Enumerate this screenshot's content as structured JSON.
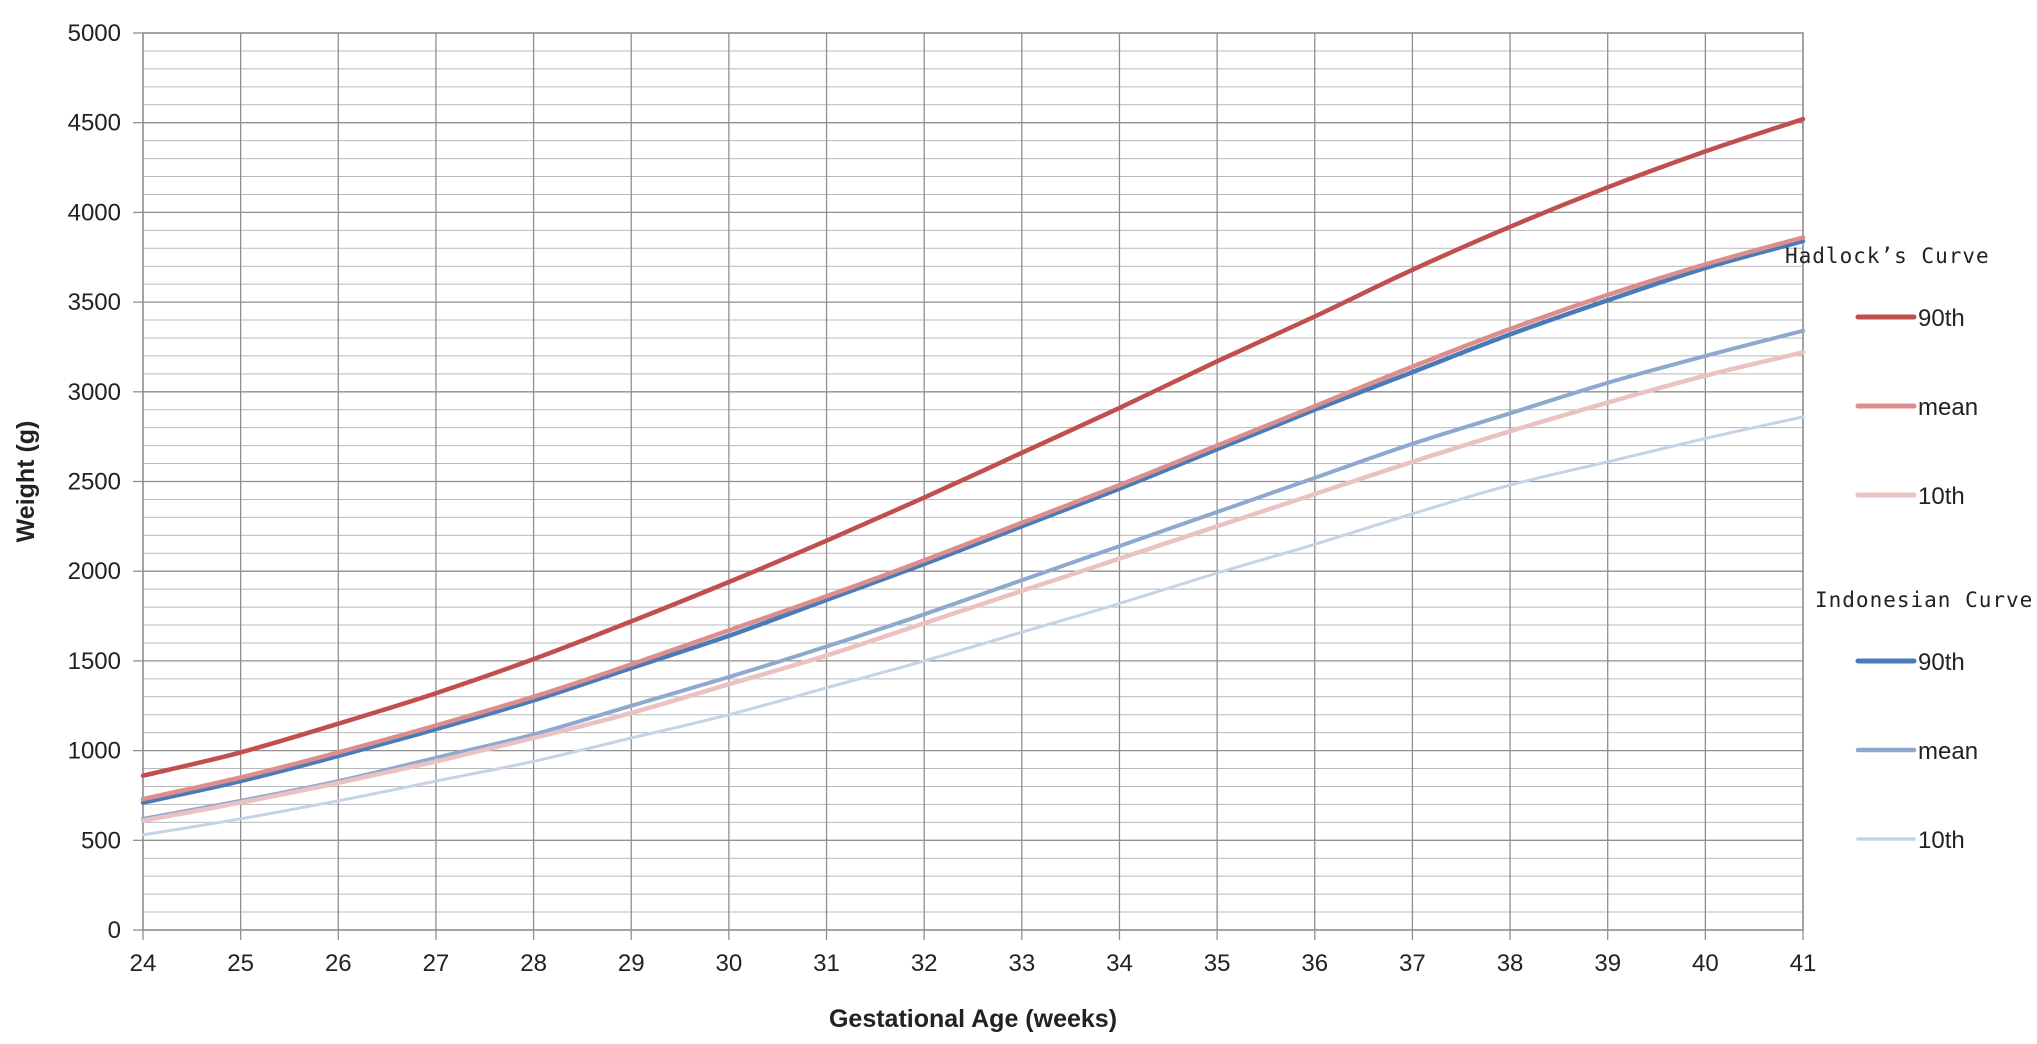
{
  "chart_data": {
    "type": "line",
    "title": "",
    "xlabel": "Gestational Age (weeks)",
    "ylabel": "Weight (g)",
    "xlim": [
      24,
      41
    ],
    "ylim": [
      0,
      5000
    ],
    "x_ticks": [
      24,
      25,
      26,
      27,
      28,
      29,
      30,
      31,
      32,
      33,
      34,
      35,
      36,
      37,
      38,
      39,
      40,
      41
    ],
    "y_ticks": [
      0,
      500,
      1000,
      1500,
      2000,
      2500,
      3000,
      3500,
      4000,
      4500,
      5000
    ],
    "y_minor_step": 100,
    "grid": true,
    "legend_position": "right",
    "x": [
      24,
      25,
      26,
      27,
      28,
      29,
      30,
      31,
      32,
      33,
      34,
      35,
      36,
      37,
      38,
      39,
      40,
      41
    ],
    "legend_groups": [
      {
        "title": "Hadlock’s Curve",
        "series": [
          {
            "name": "90th",
            "color": "#c0504d",
            "width": 4.5,
            "values": [
              860,
              990,
              1150,
              1320,
              1510,
              1720,
              1940,
              2170,
              2410,
              2660,
              2910,
              3170,
              3420,
              3680,
              3920,
              4140,
              4340,
              4520
            ]
          },
          {
            "name": "mean",
            "color": "#dc8e8c",
            "width": 4.5,
            "values": [
              730,
              850,
              990,
              1140,
              1300,
              1480,
              1670,
              1860,
              2060,
              2270,
              2480,
              2700,
              2920,
              3140,
              3350,
              3540,
              3710,
              3860
            ]
          },
          {
            "name": "10th",
            "color": "#eac2c1",
            "width": 4.5,
            "values": [
              610,
              710,
              820,
              940,
              1070,
              1210,
              1370,
              1530,
              1710,
              1890,
              2070,
              2250,
              2430,
              2610,
              2780,
              2940,
              3090,
              3220
            ]
          }
        ]
      },
      {
        "title": "Indonesian Curve",
        "series": [
          {
            "name": "90th",
            "color": "#4a7ab8",
            "width": 4.5,
            "values": [
              710,
              830,
              970,
              1120,
              1280,
              1460,
              1640,
              1840,
              2040,
              2250,
              2460,
              2680,
              2900,
              3110,
              3320,
              3510,
              3690,
              3840
            ]
          },
          {
            "name": "mean",
            "color": "#8ea8cf",
            "width": 4,
            "values": [
              620,
              720,
              830,
              960,
              1090,
              1250,
              1410,
              1580,
              1760,
              1950,
              2140,
              2330,
              2520,
              2710,
              2880,
              3050,
              3200,
              3340
            ]
          },
          {
            "name": "10th",
            "color": "#c5d3e7",
            "width": 3,
            "values": [
              530,
              620,
              720,
              830,
              940,
              1070,
              1200,
              1350,
              1500,
              1660,
              1820,
              1990,
              2150,
              2320,
              2480,
              2610,
              2740,
              2860
            ]
          }
        ]
      }
    ]
  }
}
